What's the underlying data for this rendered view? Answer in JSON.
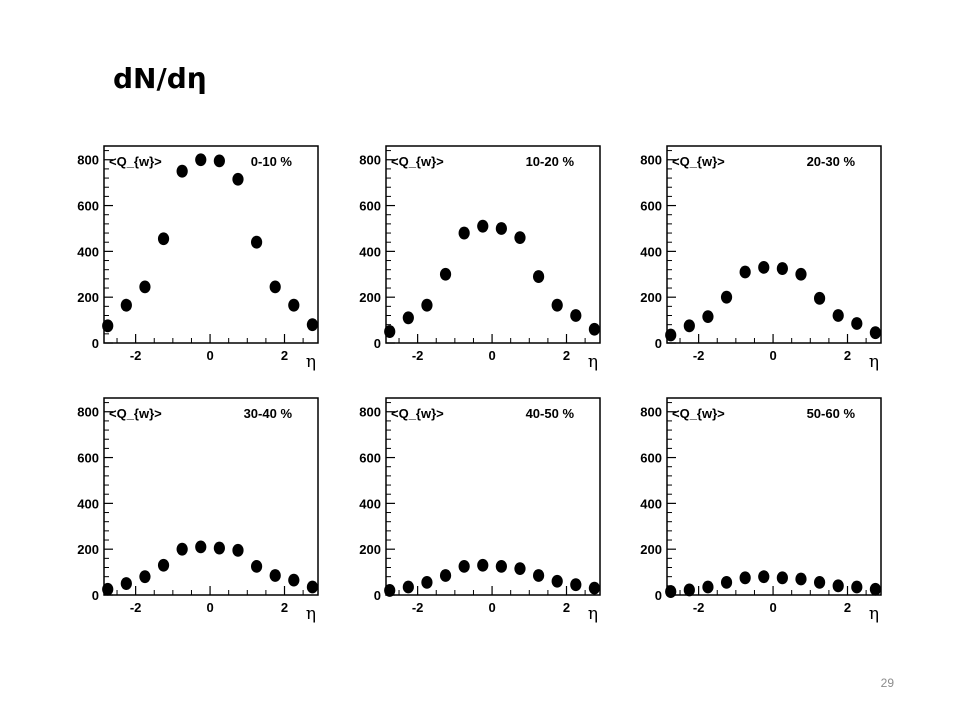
{
  "slide": {
    "title": "dN/dη",
    "page_number": "29"
  },
  "chart_data": [
    {
      "type": "scatter",
      "annotation_left": "<Q_{w}>",
      "annotation_right": "0-10 %",
      "xlabel": "η",
      "xlim": [
        -2.85,
        2.9
      ],
      "ylim": [
        0,
        860
      ],
      "xticks": [
        -2,
        0,
        2
      ],
      "yticks": [
        0,
        200,
        400,
        600,
        800
      ],
      "x": [
        -2.75,
        -2.25,
        -1.75,
        -1.25,
        -0.75,
        -0.25,
        0.25,
        0.75,
        1.25,
        1.75,
        2.25,
        2.75
      ],
      "y": [
        75,
        165,
        245,
        455,
        750,
        800,
        795,
        715,
        440,
        245,
        165,
        80
      ]
    },
    {
      "type": "scatter",
      "annotation_left": "<Q_{w}>",
      "annotation_right": "10-20 %",
      "xlabel": "η",
      "xlim": [
        -2.85,
        2.9
      ],
      "ylim": [
        0,
        860
      ],
      "xticks": [
        -2,
        0,
        2
      ],
      "yticks": [
        0,
        200,
        400,
        600,
        800
      ],
      "x": [
        -2.75,
        -2.25,
        -1.75,
        -1.25,
        -0.75,
        -0.25,
        0.25,
        0.75,
        1.25,
        1.75,
        2.25,
        2.75
      ],
      "y": [
        50,
        110,
        165,
        300,
        480,
        510,
        500,
        460,
        290,
        165,
        120,
        60
      ]
    },
    {
      "type": "scatter",
      "annotation_left": "<Q_{w}>",
      "annotation_right": "20-30 %",
      "xlabel": "η",
      "xlim": [
        -2.85,
        2.9
      ],
      "ylim": [
        0,
        860
      ],
      "xticks": [
        -2,
        0,
        2
      ],
      "yticks": [
        0,
        200,
        400,
        600,
        800
      ],
      "x": [
        -2.75,
        -2.25,
        -1.75,
        -1.25,
        -0.75,
        -0.25,
        0.25,
        0.75,
        1.25,
        1.75,
        2.25,
        2.75
      ],
      "y": [
        35,
        75,
        115,
        200,
        310,
        330,
        325,
        300,
        195,
        120,
        85,
        45
      ]
    },
    {
      "type": "scatter",
      "annotation_left": "<Q_{w}>",
      "annotation_right": "30-40 %",
      "xlabel": "η",
      "xlim": [
        -2.85,
        2.9
      ],
      "ylim": [
        0,
        860
      ],
      "xticks": [
        -2,
        0,
        2
      ],
      "yticks": [
        0,
        200,
        400,
        600,
        800
      ],
      "x": [
        -2.75,
        -2.25,
        -1.75,
        -1.25,
        -0.75,
        -0.25,
        0.25,
        0.75,
        1.25,
        1.75,
        2.25,
        2.75
      ],
      "y": [
        25,
        50,
        80,
        130,
        200,
        210,
        205,
        195,
        125,
        85,
        65,
        35
      ]
    },
    {
      "type": "scatter",
      "annotation_left": "<Q_{w}>",
      "annotation_right": "40-50 %",
      "xlabel": "η",
      "xlim": [
        -2.85,
        2.9
      ],
      "ylim": [
        0,
        860
      ],
      "xticks": [
        -2,
        0,
        2
      ],
      "yticks": [
        0,
        200,
        400,
        600,
        800
      ],
      "x": [
        -2.75,
        -2.25,
        -1.75,
        -1.25,
        -0.75,
        -0.25,
        0.25,
        0.75,
        1.25,
        1.75,
        2.25,
        2.75
      ],
      "y": [
        20,
        35,
        55,
        85,
        125,
        130,
        125,
        115,
        85,
        60,
        45,
        30
      ]
    },
    {
      "type": "scatter",
      "annotation_left": "<Q_{w}>",
      "annotation_right": "50-60 %",
      "xlabel": "η",
      "xlim": [
        -2.85,
        2.9
      ],
      "ylim": [
        0,
        860
      ],
      "xticks": [
        -2,
        0,
        2
      ],
      "yticks": [
        0,
        200,
        400,
        600,
        800
      ],
      "x": [
        -2.75,
        -2.25,
        -1.75,
        -1.25,
        -0.75,
        -0.25,
        0.25,
        0.75,
        1.25,
        1.75,
        2.25,
        2.75
      ],
      "y": [
        15,
        22,
        35,
        55,
        75,
        80,
        75,
        70,
        55,
        40,
        35,
        25
      ]
    }
  ]
}
